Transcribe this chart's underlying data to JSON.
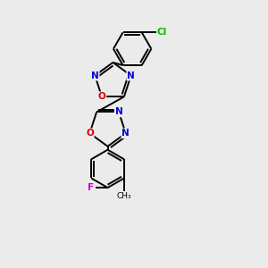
{
  "background_color": "#ebebeb",
  "bond_color": "#000000",
  "atom_colors": {
    "N": "#0000dd",
    "O": "#dd0000",
    "Cl": "#00bb00",
    "F": "#cc00cc",
    "C": "#000000"
  },
  "figsize": [
    3.0,
    3.0
  ],
  "dpi": 100
}
